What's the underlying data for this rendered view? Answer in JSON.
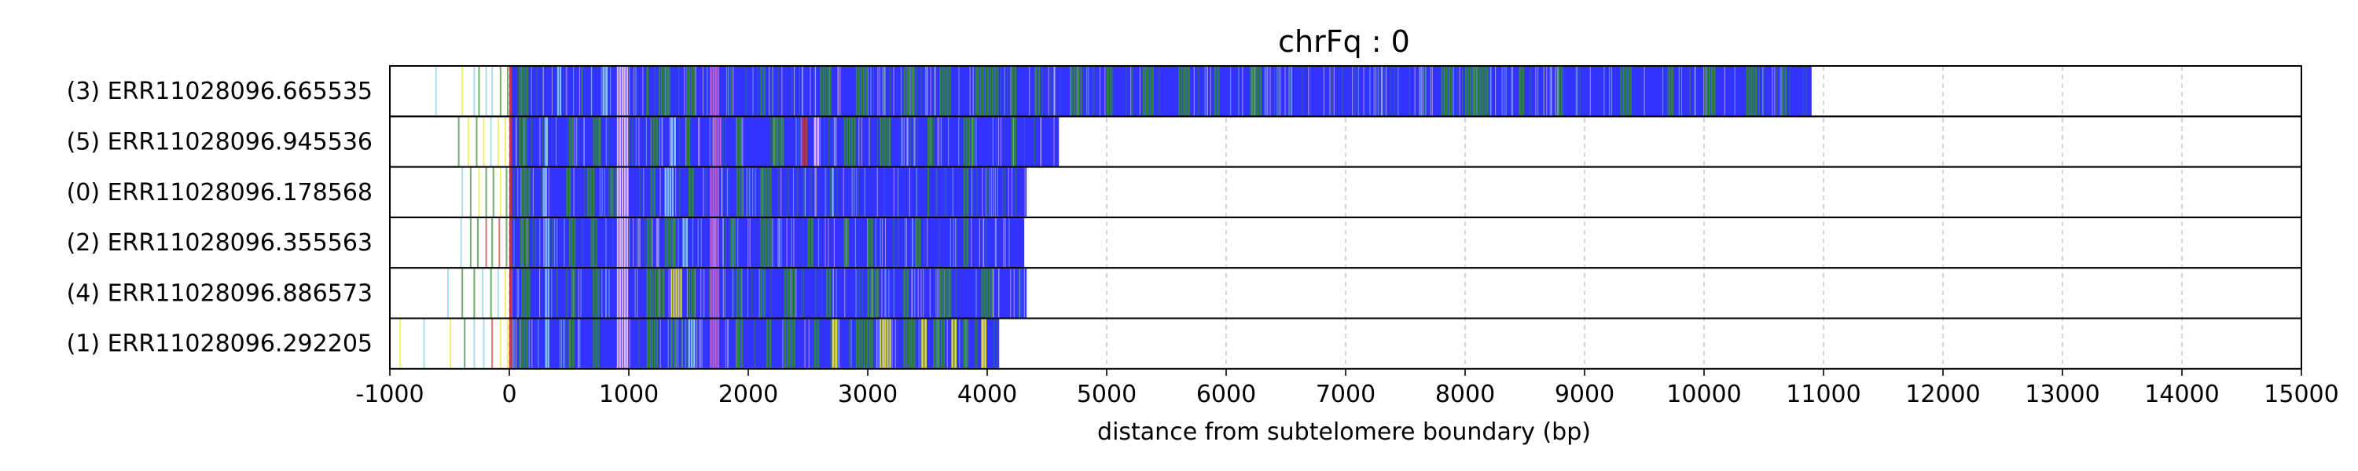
{
  "chart_data": {
    "type": "bar",
    "title": "chrFq : 0",
    "xlabel": "distance from subtelomere boundary (bp)",
    "ylabel": "",
    "xlim": [
      -1000,
      15000
    ],
    "xticks": [
      -1000,
      0,
      1000,
      2000,
      3000,
      4000,
      5000,
      6000,
      7000,
      8000,
      9000,
      10000,
      11000,
      12000,
      13000,
      14000,
      15000
    ],
    "grid": "vertical dashed",
    "colors": {
      "base": "#3333ff",
      "green": "#2e8b2e",
      "light_blue": "#87ceeb",
      "pink": "#cc66cc",
      "light_pink": "#f0c0f0",
      "red": "#cc3333",
      "yellow": "#e8e830",
      "grid": "#cccccc"
    },
    "reads": [
      {
        "label": "(3) ERR11028096.665535",
        "end": 10900,
        "pre": [
          -620,
          -400,
          -300,
          -260,
          -200,
          -150,
          -80,
          -20
        ],
        "features": [
          [
            0,
            30,
            "red"
          ],
          [
            80,
            160,
            "green"
          ],
          [
            400,
            440,
            "light_blue"
          ],
          [
            600,
            620,
            "green"
          ],
          [
            780,
            830,
            "light_blue"
          ],
          [
            900,
            1000,
            "light_pink"
          ],
          [
            1150,
            1170,
            "green"
          ],
          [
            1250,
            1350,
            "green"
          ],
          [
            1480,
            1560,
            "green"
          ],
          [
            1680,
            1760,
            "pink"
          ],
          [
            1850,
            1870,
            "green"
          ],
          [
            2100,
            2150,
            "green"
          ],
          [
            2600,
            2700,
            "green"
          ],
          [
            2900,
            3000,
            "green"
          ],
          [
            3300,
            3400,
            "green"
          ],
          [
            3600,
            3700,
            "green"
          ],
          [
            3900,
            4100,
            "green"
          ],
          [
            4200,
            4250,
            "green"
          ],
          [
            4400,
            4450,
            "green"
          ],
          [
            4700,
            4800,
            "green"
          ],
          [
            5000,
            5050,
            "green"
          ],
          [
            5300,
            5400,
            "green"
          ],
          [
            5600,
            5700,
            "green"
          ],
          [
            5900,
            5950,
            "green"
          ],
          [
            6200,
            6300,
            "green"
          ],
          [
            7800,
            7900,
            "green"
          ],
          [
            8000,
            8200,
            "green"
          ],
          [
            8450,
            8500,
            "green"
          ],
          [
            8780,
            8820,
            "green"
          ],
          [
            9300,
            9400,
            "green"
          ],
          [
            9700,
            9750,
            "green"
          ],
          [
            10000,
            10100,
            "green"
          ],
          [
            10350,
            10450,
            "green"
          ],
          [
            10650,
            10700,
            "green"
          ]
        ]
      },
      {
        "label": "(5) ERR11028096.945536",
        "end": 4600,
        "pre": [
          -430,
          -350,
          -280,
          -220,
          -160,
          -100,
          -40
        ],
        "features": [
          [
            0,
            30,
            "red"
          ],
          [
            80,
            150,
            "green"
          ],
          [
            300,
            330,
            "light_blue"
          ],
          [
            500,
            540,
            "green"
          ],
          [
            700,
            760,
            "green"
          ],
          [
            900,
            1000,
            "light_pink"
          ],
          [
            1200,
            1250,
            "green"
          ],
          [
            1350,
            1400,
            "light_blue"
          ],
          [
            1480,
            1520,
            "green"
          ],
          [
            1700,
            1780,
            "pink"
          ],
          [
            1900,
            1950,
            "green"
          ],
          [
            2200,
            2300,
            "green"
          ],
          [
            2450,
            2500,
            "red"
          ],
          [
            2550,
            2600,
            "light_pink"
          ],
          [
            2800,
            2900,
            "green"
          ],
          [
            3100,
            3200,
            "green"
          ],
          [
            3500,
            3550,
            "green"
          ],
          [
            3800,
            3900,
            "green"
          ],
          [
            4200,
            4250,
            "green"
          ]
        ]
      },
      {
        "label": "(0) ERR11028096.178568",
        "end": 4330,
        "pre": [
          -400,
          -330,
          -260,
          -200,
          -140,
          -80,
          -30
        ],
        "features": [
          [
            0,
            30,
            "red"
          ],
          [
            100,
            180,
            "green"
          ],
          [
            280,
            320,
            "light_blue"
          ],
          [
            480,
            520,
            "green"
          ],
          [
            650,
            720,
            "green"
          ],
          [
            850,
            880,
            "green"
          ],
          [
            900,
            1000,
            "light_pink"
          ],
          [
            1180,
            1230,
            "green"
          ],
          [
            1300,
            1380,
            "light_blue"
          ],
          [
            1500,
            1550,
            "green"
          ],
          [
            1680,
            1760,
            "pink"
          ],
          [
            1900,
            1960,
            "green"
          ],
          [
            2100,
            2200,
            "green"
          ],
          [
            2700,
            2720,
            "light_blue"
          ],
          [
            3500,
            3520,
            "green"
          ],
          [
            3800,
            3850,
            "green"
          ]
        ]
      },
      {
        "label": "(2) ERR11028096.355563",
        "end": 4310,
        "pre": [
          -410,
          -330,
          -270,
          -200,
          -150,
          -90,
          -30
        ],
        "features": [
          [
            0,
            30,
            "red"
          ],
          [
            90,
            170,
            "green"
          ],
          [
            300,
            340,
            "light_blue"
          ],
          [
            500,
            560,
            "green"
          ],
          [
            680,
            740,
            "green"
          ],
          [
            900,
            1000,
            "light_pink"
          ],
          [
            1150,
            1200,
            "green"
          ],
          [
            1300,
            1400,
            "green"
          ],
          [
            1450,
            1500,
            "light_blue"
          ],
          [
            1680,
            1760,
            "pink"
          ],
          [
            1850,
            1900,
            "green"
          ],
          [
            2100,
            2200,
            "green"
          ],
          [
            2500,
            2550,
            "green"
          ],
          [
            2800,
            2850,
            "green"
          ],
          [
            3000,
            3050,
            "green"
          ],
          [
            3400,
            3450,
            "green"
          ],
          [
            3800,
            3850,
            "green"
          ]
        ]
      },
      {
        "label": "(4) ERR11028096.886573",
        "end": 4330,
        "pre": [
          -520,
          -400,
          -300,
          -230,
          -160,
          -100,
          -40
        ],
        "features": [
          [
            0,
            30,
            "red"
          ],
          [
            100,
            180,
            "green"
          ],
          [
            300,
            340,
            "light_blue"
          ],
          [
            520,
            560,
            "green"
          ],
          [
            700,
            760,
            "green"
          ],
          [
            900,
            1000,
            "light_pink"
          ],
          [
            1150,
            1300,
            "green"
          ],
          [
            1350,
            1450,
            "yellow"
          ],
          [
            1500,
            1560,
            "green"
          ],
          [
            1680,
            1760,
            "pink"
          ],
          [
            1900,
            1950,
            "green"
          ],
          [
            2100,
            2150,
            "green"
          ],
          [
            2300,
            2400,
            "green"
          ],
          [
            2650,
            2700,
            "green"
          ],
          [
            3000,
            3100,
            "green"
          ],
          [
            3300,
            3350,
            "green"
          ],
          [
            3600,
            3700,
            "green"
          ],
          [
            3950,
            4050,
            "green"
          ]
        ]
      },
      {
        "label": "(1) ERR11028096.292205",
        "end": 4100,
        "pre": [
          -920,
          -720,
          -500,
          -380,
          -300,
          -220,
          -150,
          -80,
          -20
        ],
        "features": [
          [
            0,
            30,
            "red"
          ],
          [
            80,
            160,
            "green"
          ],
          [
            300,
            340,
            "light_blue"
          ],
          [
            500,
            550,
            "green"
          ],
          [
            700,
            760,
            "green"
          ],
          [
            900,
            1000,
            "light_pink"
          ],
          [
            1150,
            1250,
            "green"
          ],
          [
            1350,
            1400,
            "green"
          ],
          [
            1500,
            1560,
            "light_blue"
          ],
          [
            1680,
            1760,
            "pink"
          ],
          [
            1900,
            1960,
            "green"
          ],
          [
            2150,
            2200,
            "green"
          ],
          [
            2300,
            2400,
            "green"
          ],
          [
            2550,
            2600,
            "green"
          ],
          [
            2700,
            2750,
            "yellow"
          ],
          [
            2900,
            3050,
            "green"
          ],
          [
            3100,
            3200,
            "yellow"
          ],
          [
            3300,
            3400,
            "green"
          ],
          [
            3450,
            3500,
            "yellow"
          ],
          [
            3550,
            3650,
            "green"
          ],
          [
            3700,
            3750,
            "yellow"
          ],
          [
            3800,
            3850,
            "green"
          ],
          [
            3950,
            4000,
            "yellow"
          ]
        ]
      }
    ]
  }
}
